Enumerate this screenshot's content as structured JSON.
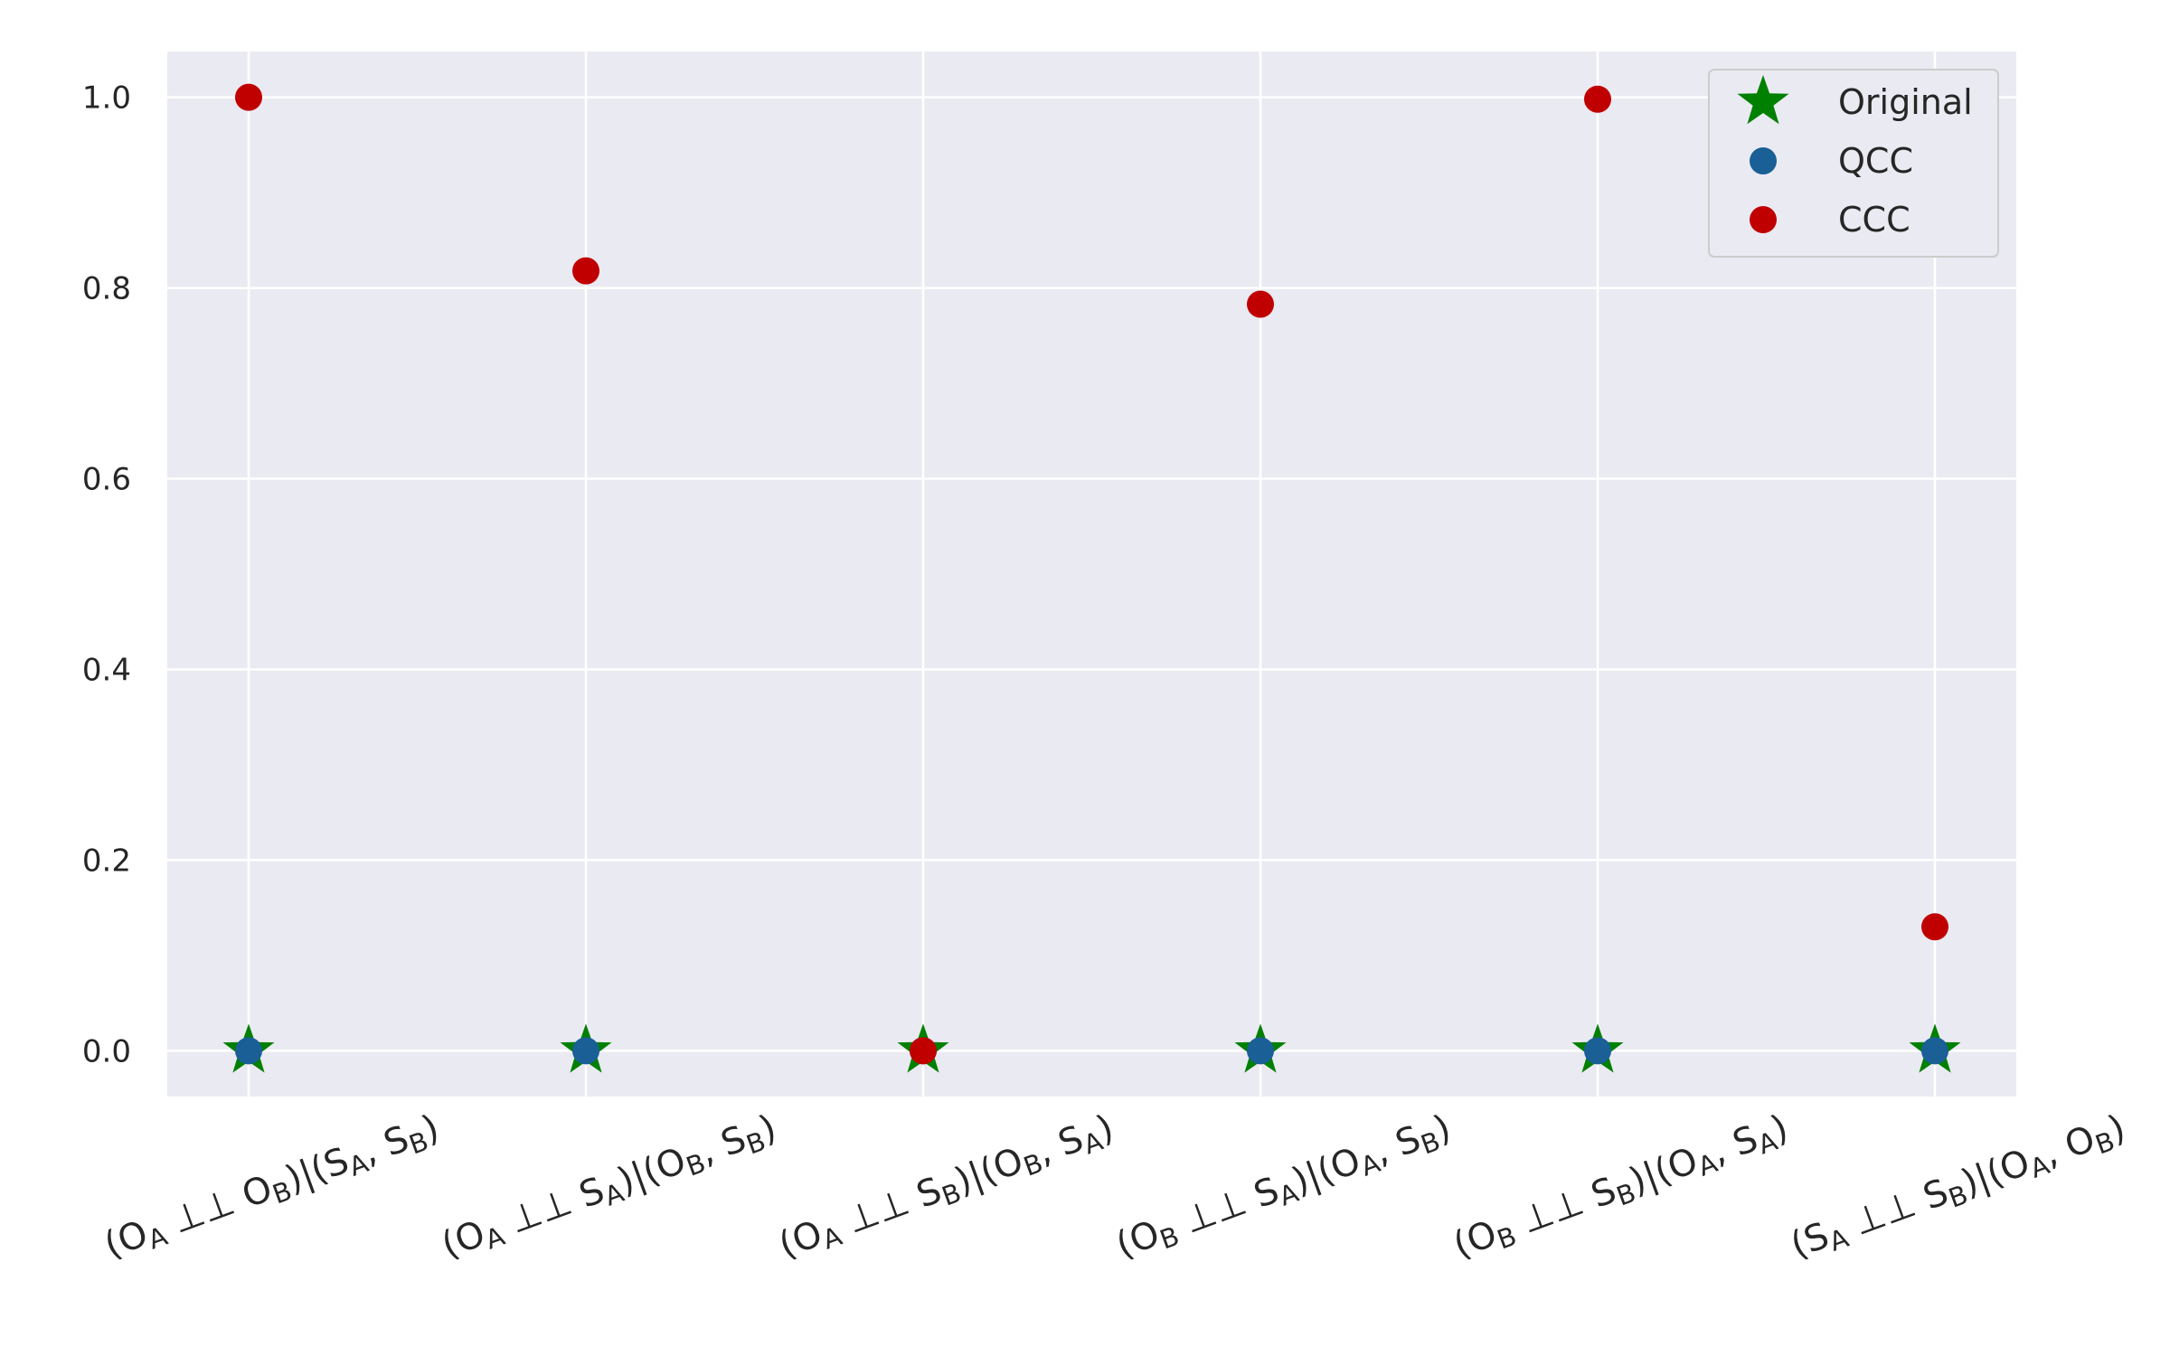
{
  "chart_data": {
    "type": "scatter",
    "title": "",
    "xlabel": "",
    "ylabel": "",
    "categories": [
      "(O_A ⊥⊥ O_B)|(S_A, S_B)",
      "(O_A ⊥⊥ S_A)|(O_B, S_B)",
      "(O_A ⊥⊥ S_B)|(O_B, S_A)",
      "(O_B ⊥⊥ S_A)|(O_A, S_B)",
      "(O_B ⊥⊥ S_B)|(O_A, S_A)",
      "(S_A ⊥⊥ S_B)|(O_A, O_B)"
    ],
    "category_parts": [
      [
        [
          "(O",
          "A",
          " ⊥⊥ O",
          "B",
          ")|(S",
          "A",
          ", S",
          "B",
          ")"
        ]
      ],
      [
        [
          "(O",
          "A",
          " ⊥⊥ S",
          "A",
          ")|(O",
          "B",
          ", S",
          "B",
          ")"
        ]
      ],
      [
        [
          "(O",
          "A",
          " ⊥⊥ S",
          "B",
          ")|(O",
          "B",
          ", S",
          "A",
          ")"
        ]
      ],
      [
        [
          "(O",
          "B",
          " ⊥⊥ S",
          "A",
          ")|(O",
          "A",
          ", S",
          "B",
          ")"
        ]
      ],
      [
        [
          "(O",
          "B",
          " ⊥⊥ S",
          "B",
          ")|(O",
          "A",
          ", S",
          "A",
          ")"
        ]
      ],
      [
        [
          "(S",
          "A",
          " ⊥⊥ S",
          "B",
          ")|(O",
          "A",
          ", O",
          "B",
          ")"
        ]
      ]
    ],
    "ylim": [
      -0.048,
      1.048
    ],
    "yticks": [
      "0.0",
      "0.2",
      "0.4",
      "0.6",
      "0.8",
      "1.0"
    ],
    "ytick_values": [
      0.0,
      0.2,
      0.4,
      0.6,
      0.8,
      1.0
    ],
    "grid": true,
    "legend_position": "top-right",
    "series": [
      {
        "name": "Original",
        "marker": "star",
        "color": "#008000",
        "values": [
          0,
          0,
          0,
          0,
          0,
          0
        ]
      },
      {
        "name": "QCC",
        "marker": "circle",
        "color": "#1a5f96",
        "values": [
          0,
          0,
          0,
          0,
          0,
          0
        ]
      },
      {
        "name": "CCC",
        "marker": "circle",
        "color": "#c00000",
        "values": [
          1.0,
          0.818,
          0.0,
          0.783,
          0.998,
          0.13
        ]
      }
    ]
  }
}
